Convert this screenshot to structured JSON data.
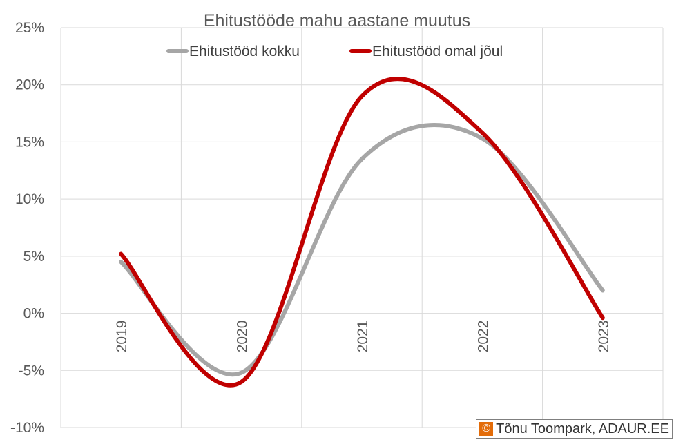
{
  "chart_data": {
    "type": "line",
    "title": "Ehitustööde mahu aastane muutus",
    "x": [
      "2019",
      "2020",
      "2021",
      "2022",
      "2023"
    ],
    "series": [
      {
        "name": "Ehitustööd kokku",
        "color": "#a6a6a6",
        "values": [
          4.5,
          -5.2,
          13.5,
          15.3,
          2.0
        ]
      },
      {
        "name": "Ehitustööd omal jõul",
        "color": "#c00000",
        "values": [
          5.2,
          -6.0,
          19.0,
          15.8,
          -0.4
        ]
      }
    ],
    "ylim": [
      -10,
      25
    ],
    "yticks": [
      "25%",
      "20%",
      "15%",
      "10%",
      "5%",
      "0%",
      "-5%",
      "-10%"
    ],
    "ytick_values": [
      25,
      20,
      15,
      10,
      5,
      0,
      -5,
      -10
    ],
    "grid": true,
    "legend_position": "top"
  },
  "credit": {
    "icon": "©",
    "text": "Tõnu Toompark, ADAUR.EE"
  }
}
